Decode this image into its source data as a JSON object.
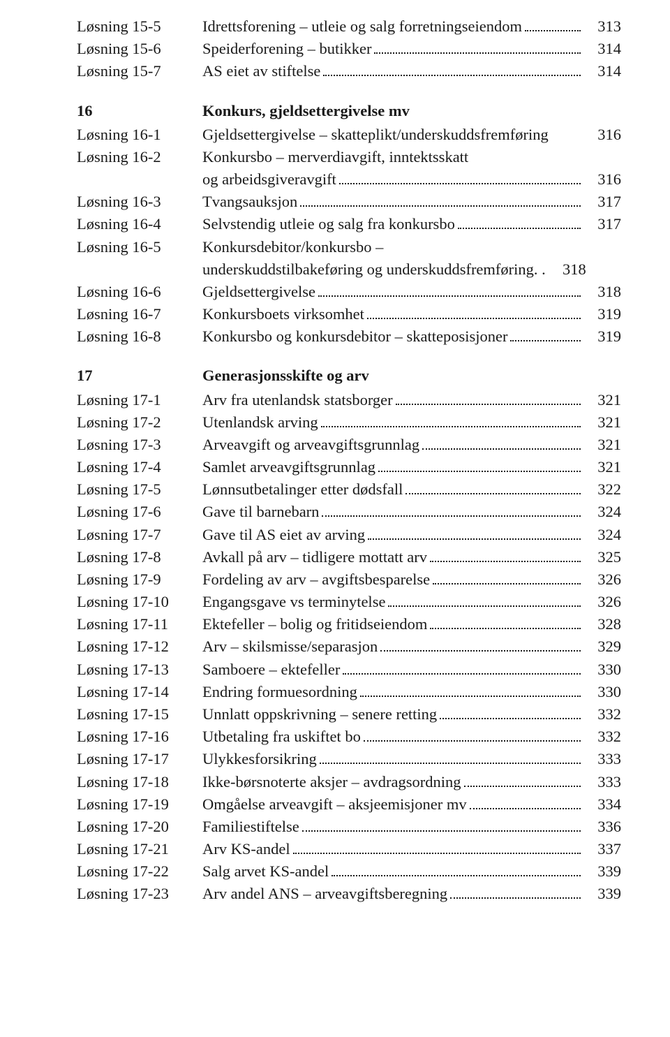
{
  "block_top": [
    {
      "label": "Løsning 15-5",
      "title": "Idrettsforening – utleie og salg forretningseiendom",
      "page": "313"
    },
    {
      "label": "Løsning 15-6",
      "title": "Speiderforening – butikker",
      "page": "314"
    },
    {
      "label": "Løsning 15-7",
      "title": "AS eiet av stiftelse",
      "page": "314"
    }
  ],
  "section16": {
    "num": "16",
    "title": "Konkurs, gjeldsettergivelse mv"
  },
  "block16_1": {
    "label": "Løsning 16-1",
    "title": "Gjeldsettergivelse – skatteplikt/underskuddsfremføring",
    "page": "316"
  },
  "block16_2": {
    "label": "Løsning 16-2",
    "line1": "Konkursbo – merverdiavgift, inntektsskatt",
    "line2": "og arbeidsgiveravgift",
    "page": "316"
  },
  "block16_rest_a": [
    {
      "label": "Løsning 16-3",
      "title": "Tvangsauksjon",
      "page": "317"
    },
    {
      "label": "Løsning 16-4",
      "title": "Selvstendig utleie og salg fra konkursbo",
      "page": "317"
    }
  ],
  "block16_5": {
    "label": "Løsning 16-5",
    "line1": "Konkursdebitor/konkursbo –",
    "line2": "underskuddstilbakeføring og underskuddsfremføring",
    "page": "318"
  },
  "block16_rest_b": [
    {
      "label": "Løsning 16-6",
      "title": "Gjeldsettergivelse",
      "page": "318"
    },
    {
      "label": "Løsning 16-7",
      "title": "Konkursboets virksomhet",
      "page": "319"
    },
    {
      "label": "Løsning 16-8",
      "title": "Konkursbo og konkursdebitor – skatteposisjoner",
      "page": "319"
    }
  ],
  "section17": {
    "num": "17",
    "title": "Generasjonsskifte og arv"
  },
  "block17": [
    {
      "label": "Løsning 17-1",
      "title": "Arv fra utenlandsk statsborger",
      "page": "321"
    },
    {
      "label": "Løsning 17-2",
      "title": "Utenlandsk arving",
      "page": "321"
    },
    {
      "label": "Løsning 17-3",
      "title": "Arveavgift og arveavgiftsgrunnlag",
      "page": "321"
    },
    {
      "label": "Løsning 17-4",
      "title": "Samlet arveavgiftsgrunnlag",
      "page": "321"
    },
    {
      "label": "Løsning 17-5",
      "title": "Lønnsutbetalinger etter dødsfall",
      "page": "322"
    },
    {
      "label": "Løsning 17-6",
      "title": "Gave til barnebarn",
      "page": "324"
    },
    {
      "label": "Løsning 17-7",
      "title": "Gave til AS eiet av arving",
      "page": "324"
    },
    {
      "label": "Løsning 17-8",
      "title": "Avkall på arv – tidligere mottatt arv",
      "page": "325"
    },
    {
      "label": "Løsning 17-9",
      "title": "Fordeling av arv – avgiftsbesparelse",
      "page": "326"
    },
    {
      "label": "Løsning 17-10",
      "title": "Engangsgave vs terminytelse",
      "page": "326"
    },
    {
      "label": "Løsning 17-11",
      "title": "Ektefeller – bolig og fritidseiendom",
      "page": "328"
    },
    {
      "label": "Løsning 17-12",
      "title": "Arv – skilsmisse/separasjon",
      "page": "329"
    },
    {
      "label": "Løsning 17-13",
      "title": "Samboere – ektefeller",
      "page": "330"
    },
    {
      "label": "Løsning 17-14",
      "title": "Endring formuesordning",
      "page": "330"
    },
    {
      "label": "Løsning 17-15",
      "title": "Unnlatt oppskrivning – senere retting",
      "page": "332"
    },
    {
      "label": "Løsning 17-16",
      "title": "Utbetaling fra uskiftet bo",
      "page": "332"
    },
    {
      "label": "Løsning 17-17",
      "title": "Ulykkesforsikring",
      "page": "333"
    },
    {
      "label": "Løsning 17-18",
      "title": "Ikke-børsnoterte aksjer – avdragsordning",
      "page": "333"
    },
    {
      "label": "Løsning 17-19",
      "title": "Omgåelse arveavgift – aksjeemisjoner mv",
      "page": "334"
    },
    {
      "label": "Løsning 17-20",
      "title": "Familiestiftelse",
      "page": "336"
    },
    {
      "label": "Løsning 17-21",
      "title": "Arv KS-andel",
      "page": "337"
    },
    {
      "label": "Løsning 17-22",
      "title": "Salg arvet KS-andel",
      "page": "339"
    },
    {
      "label": "Løsning 17-23",
      "title": "Arv andel ANS – arveavgiftsberegning",
      "page": "339"
    }
  ]
}
